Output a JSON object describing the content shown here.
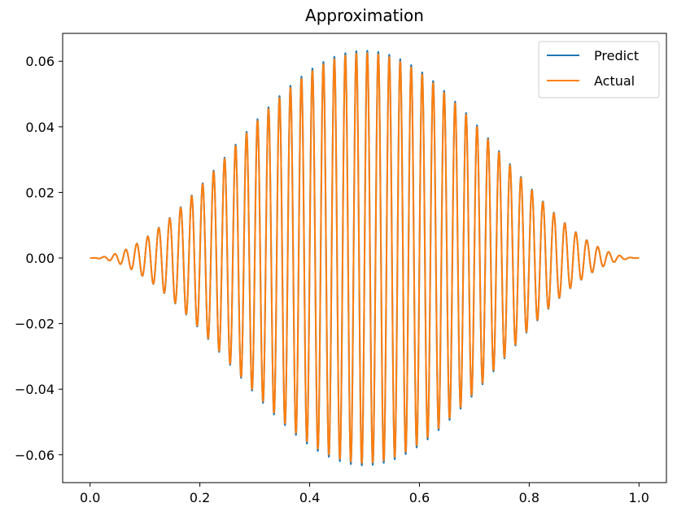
{
  "chart_data": {
    "type": "line",
    "title": "Approximation",
    "xlabel": "",
    "ylabel": "",
    "xlim": [
      -0.05,
      1.05
    ],
    "ylim": [
      -0.0685,
      0.0685
    ],
    "xticks": [
      0.0,
      0.2,
      0.4,
      0.6,
      0.8,
      1.0
    ],
    "xtick_labels": [
      "0.0",
      "0.2",
      "0.4",
      "0.6",
      "0.8",
      "1.0"
    ],
    "yticks": [
      -0.06,
      -0.04,
      -0.02,
      0.0,
      0.02,
      0.04,
      0.06
    ],
    "ytick_labels": [
      "−0.06",
      "−0.04",
      "−0.02",
      "0.00",
      "0.02",
      "0.04",
      "0.06"
    ],
    "grid": false,
    "legend_position": "top-right",
    "curve": {
      "description": "oscillation: amplitude * sin^2(pi*x) envelope times sin(2*pi*frequency*x)",
      "amplitude": 0.0625,
      "frequency": 50,
      "x_range": [
        0.0,
        1.0
      ]
    },
    "series": [
      {
        "name": "Predict",
        "color": "#1f77b4"
      },
      {
        "name": "Actual",
        "color": "#ff7f0e"
      }
    ]
  }
}
